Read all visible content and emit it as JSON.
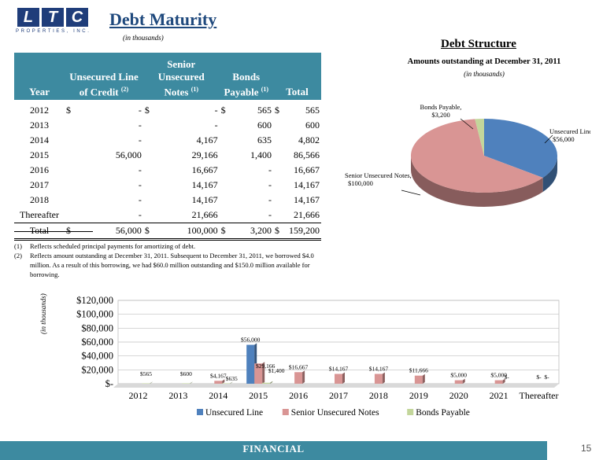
{
  "logo": {
    "letters": [
      "L",
      "T",
      "C"
    ],
    "subtext": "PROPERTIES, INC."
  },
  "title": "Debt Maturity",
  "subtitle": "(in thousands)",
  "table": {
    "headers": [
      {
        "label": "Year",
        "note": ""
      },
      {
        "label": "Unsecured Line of Credit",
        "note": "(2)"
      },
      {
        "label": "Senior Unsecured Notes",
        "note": "(1)"
      },
      {
        "label": "Bonds Payable",
        "note": "(1)"
      },
      {
        "label": "Total",
        "note": ""
      }
    ],
    "rows": [
      {
        "year": "2012",
        "c1": "$",
        "v1": "-",
        "c2": "$",
        "v2": "-",
        "c3": "$",
        "v3": "565",
        "c4": "$",
        "v4": "565"
      },
      {
        "year": "2013",
        "c1": "",
        "v1": "-",
        "c2": "",
        "v2": "-",
        "c3": "",
        "v3": "600",
        "c4": "",
        "v4": "600"
      },
      {
        "year": "2014",
        "c1": "",
        "v1": "-",
        "c2": "",
        "v2": "4,167",
        "c3": "",
        "v3": "635",
        "c4": "",
        "v4": "4,802"
      },
      {
        "year": "2015",
        "c1": "",
        "v1": "56,000",
        "c2": "",
        "v2": "29,166",
        "c3": "",
        "v3": "1,400",
        "c4": "",
        "v4": "86,566"
      },
      {
        "year": "2016",
        "c1": "",
        "v1": "-",
        "c2": "",
        "v2": "16,667",
        "c3": "",
        "v3": "-",
        "c4": "",
        "v4": "16,667"
      },
      {
        "year": "2017",
        "c1": "",
        "v1": "-",
        "c2": "",
        "v2": "14,167",
        "c3": "",
        "v3": "-",
        "c4": "",
        "v4": "14,167"
      },
      {
        "year": "2018",
        "c1": "",
        "v1": "-",
        "c2": "",
        "v2": "14,167",
        "c3": "",
        "v3": "-",
        "c4": "",
        "v4": "14,167"
      },
      {
        "year": "Thereafter",
        "c1": "",
        "v1": "-",
        "c2": "",
        "v2": "21,666",
        "c3": "",
        "v3": "-",
        "c4": "",
        "v4": "21,666"
      }
    ],
    "total": {
      "year": "Total",
      "c1": "$",
      "v1": "56,000",
      "c2": "$",
      "v2": "100,000",
      "c3": "$",
      "v3": "3,200",
      "c4": "$",
      "v4": "159,200"
    }
  },
  "notes": [
    {
      "mark": "(1)",
      "text": "Reflects scheduled principal payments for amortizing of debt."
    },
    {
      "mark": "(2)",
      "text": "Reflects amount outstanding at December 31, 2011.  Subsequent to December 31, 2011, we borrowed $4.0 million.  As a result of this borrowing, we had $60.0 million outstanding and $150.0 million available for borrowing."
    }
  ],
  "footer": {
    "label": "FINANCIAL",
    "page": "15"
  },
  "chart_data": [
    {
      "type": "pie",
      "title": "Debt Structure",
      "subtitle": "Amounts outstanding at December 31, 2011",
      "subtitle2": "(in thousands)",
      "slices": [
        {
          "label": "Unsecured Line,",
          "value_label": "$56,000",
          "value": 56000,
          "color": "#4f81bd"
        },
        {
          "label": "Senior Unsecured Notes,",
          "value_label": "$100,000",
          "value": 100000,
          "color": "#d99594"
        },
        {
          "label": "Bonds Payable,",
          "value_label": "$3,200",
          "value": 3200,
          "color": "#c3d69b"
        }
      ]
    },
    {
      "type": "bar",
      "ylabel": "(in thousands)",
      "ylim": [
        0,
        120000
      ],
      "yticks": [
        0,
        20000,
        40000,
        60000,
        80000,
        100000,
        120000
      ],
      "ytick_labels": [
        "$-",
        "$20,000",
        "$40,000",
        "$60,000",
        "$80,000",
        "$100,000",
        "$120,000"
      ],
      "categories": [
        "2012",
        "2013",
        "2014",
        "2015",
        "2016",
        "2017",
        "2018",
        "2019",
        "2020",
        "2021",
        "Thereafter"
      ],
      "series": [
        {
          "name": "Unsecured Line",
          "color": "#4f81bd",
          "values": [
            0,
            0,
            0,
            56000,
            0,
            0,
            0,
            0,
            0,
            0,
            0
          ],
          "labels": [
            "",
            "",
            "",
            "$56,000",
            "",
            "",
            "",
            "",
            "",
            "",
            ""
          ]
        },
        {
          "name": "Senior Unsecured Notes",
          "color": "#d99594",
          "values": [
            0,
            0,
            4167,
            29166,
            16667,
            14167,
            14167,
            11666,
            5000,
            5000,
            0
          ],
          "labels": [
            "",
            "",
            "$4,167",
            "$29,166",
            "$16,667",
            "$14,167",
            "$14,167",
            "$11,666",
            "$5,000",
            "$5,000",
            "$-"
          ]
        },
        {
          "name": "Bonds Payable",
          "color": "#c3d69b",
          "values": [
            565,
            600,
            635,
            1400,
            0,
            0,
            0,
            0,
            0,
            0,
            0
          ],
          "labels": [
            "$565",
            "$600",
            "$635",
            "$1,400",
            "",
            "",
            "",
            "",
            "",
            "$-",
            "$-"
          ]
        }
      ]
    }
  ]
}
